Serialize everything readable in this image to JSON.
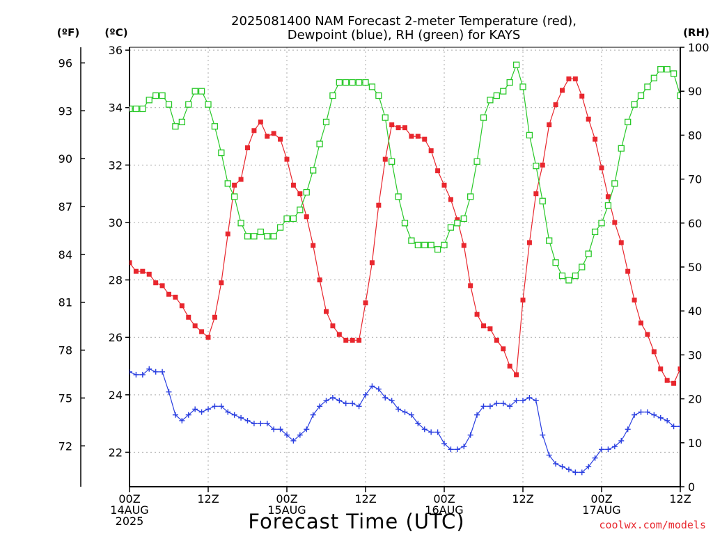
{
  "title_line1": "2025081400 NAM Forecast 2-meter Temperature (red),",
  "title_line2": "Dewpoint (blue), RH (green) for KAYS",
  "unit_f": "(ºF)",
  "unit_c": "(ºC)",
  "unit_rh": "(RH)",
  "xlabel": "Forecast Time (UTC)",
  "credit": "coolwx.com/models",
  "x_ticks": [
    {
      "hour": 0,
      "lines": [
        "00Z",
        "14AUG",
        "2025"
      ]
    },
    {
      "hour": 12,
      "lines": [
        "12Z"
      ]
    },
    {
      "hour": 24,
      "lines": [
        "00Z",
        "15AUG"
      ]
    },
    {
      "hour": 36,
      "lines": [
        "12Z"
      ]
    },
    {
      "hour": 48,
      "lines": [
        "00Z",
        "16AUG"
      ]
    },
    {
      "hour": 60,
      "lines": [
        "12Z"
      ]
    },
    {
      "hour": 72,
      "lines": [
        "00Z",
        "17AUG"
      ]
    },
    {
      "hour": 84,
      "lines": [
        "12Z"
      ]
    }
  ],
  "c_ticks": [
    "22",
    "24",
    "26",
    "28",
    "30",
    "32",
    "34",
    "36"
  ],
  "f_ticks": [
    "72",
    "75",
    "78",
    "81",
    "84",
    "87",
    "90",
    "93",
    "96"
  ],
  "rh_ticks": [
    "0",
    "10",
    "20",
    "30",
    "40",
    "50",
    "60",
    "70",
    "80",
    "90",
    "100"
  ],
  "chart_data": {
    "type": "line",
    "x_unit": "forecast hour from 2025081400",
    "xlim": [
      0,
      84
    ],
    "left_axis_c": {
      "ylim": [
        20.8,
        36.1
      ],
      "ticks": [
        22,
        24,
        26,
        28,
        30,
        32,
        34,
        36
      ]
    },
    "left_axis_f": {
      "ticks": [
        72,
        75,
        78,
        81,
        84,
        87,
        90,
        93,
        96
      ]
    },
    "right_axis_rh": {
      "ylim": [
        0,
        100
      ],
      "ticks": [
        0,
        10,
        20,
        30,
        40,
        50,
        60,
        70,
        80,
        90,
        100
      ]
    },
    "grid": true,
    "series": [
      {
        "name": "Temperature (red)",
        "axis": "C",
        "color": "#e8272e",
        "marker": "filled-square",
        "x": [
          0,
          1,
          2,
          3,
          4,
          5,
          6,
          7,
          8,
          9,
          10,
          11,
          12,
          13,
          14,
          15,
          16,
          17,
          18,
          19,
          20,
          21,
          22,
          23,
          24,
          25,
          26,
          27,
          28,
          29,
          30,
          31,
          32,
          33,
          34,
          35,
          36,
          37,
          38,
          39,
          40,
          41,
          42,
          43,
          44,
          45,
          46,
          47,
          48,
          49,
          50,
          51,
          52,
          53,
          54,
          55,
          56,
          57,
          58,
          59,
          60,
          61,
          62,
          63,
          64,
          65,
          66,
          67,
          68,
          69,
          70,
          71,
          72,
          73,
          74,
          75,
          76,
          77,
          78,
          79,
          80,
          81,
          82,
          83,
          84
        ],
        "values": [
          28.6,
          28.3,
          28.3,
          28.2,
          27.9,
          27.8,
          27.5,
          27.4,
          27.1,
          26.7,
          26.4,
          26.2,
          26.0,
          26.7,
          27.9,
          29.6,
          31.3,
          31.5,
          32.6,
          33.2,
          33.5,
          33.0,
          33.1,
          32.9,
          32.2,
          31.3,
          31.0,
          30.2,
          29.2,
          28.0,
          26.9,
          26.4,
          26.1,
          25.9,
          25.9,
          25.9,
          27.2,
          28.6,
          30.6,
          32.2,
          33.4,
          33.3,
          33.3,
          33.0,
          33.0,
          32.9,
          32.5,
          31.8,
          31.3,
          30.8,
          30.1,
          29.2,
          27.8,
          26.8,
          26.4,
          26.3,
          25.9,
          25.6,
          25.0,
          24.7,
          27.3,
          29.3,
          31.0,
          32.0,
          33.4,
          34.1,
          34.6,
          35.0,
          35.0,
          34.4,
          33.6,
          32.9,
          31.9,
          30.9,
          30.0,
          29.3,
          28.3,
          27.3,
          26.5,
          26.1,
          25.5,
          24.9,
          24.5,
          24.4,
          24.9
        ]
      },
      {
        "name": "Dewpoint (blue)",
        "axis": "C",
        "color": "#2a3fe0",
        "marker": "plus",
        "x": [
          0,
          1,
          2,
          3,
          4,
          5,
          6,
          7,
          8,
          9,
          10,
          11,
          12,
          13,
          14,
          15,
          16,
          17,
          18,
          19,
          20,
          21,
          22,
          23,
          24,
          25,
          26,
          27,
          28,
          29,
          30,
          31,
          32,
          33,
          34,
          35,
          36,
          37,
          38,
          39,
          40,
          41,
          42,
          43,
          44,
          45,
          46,
          47,
          48,
          49,
          50,
          51,
          52,
          53,
          54,
          55,
          56,
          57,
          58,
          59,
          60,
          61,
          62,
          63,
          64,
          65,
          66,
          67,
          68,
          69,
          70,
          71,
          72,
          73,
          74,
          75,
          76,
          77,
          78,
          79,
          80,
          81,
          82,
          83,
          84
        ],
        "values": [
          24.8,
          24.7,
          24.7,
          24.9,
          24.8,
          24.8,
          24.1,
          23.3,
          23.1,
          23.3,
          23.5,
          23.4,
          23.5,
          23.6,
          23.6,
          23.4,
          23.3,
          23.2,
          23.1,
          23.0,
          23.0,
          23.0,
          22.8,
          22.8,
          22.6,
          22.4,
          22.6,
          22.8,
          23.3,
          23.6,
          23.8,
          23.9,
          23.8,
          23.7,
          23.7,
          23.6,
          24.0,
          24.3,
          24.2,
          23.9,
          23.8,
          23.5,
          23.4,
          23.3,
          23.0,
          22.8,
          22.7,
          22.7,
          22.3,
          22.1,
          22.1,
          22.2,
          22.6,
          23.3,
          23.6,
          23.6,
          23.7,
          23.7,
          23.6,
          23.8,
          23.8,
          23.9,
          23.8,
          22.6,
          21.9,
          21.6,
          21.5,
          21.4,
          21.3,
          21.3,
          21.5,
          21.8,
          22.1,
          22.1,
          22.2,
          22.4,
          22.8,
          23.3,
          23.4,
          23.4,
          23.3,
          23.2,
          23.1,
          22.9,
          22.9
        ]
      },
      {
        "name": "RH (green)",
        "axis": "RH",
        "color": "#28c828",
        "marker": "open-square",
        "x": [
          0,
          1,
          2,
          3,
          4,
          5,
          6,
          7,
          8,
          9,
          10,
          11,
          12,
          13,
          14,
          15,
          16,
          17,
          18,
          19,
          20,
          21,
          22,
          23,
          24,
          25,
          26,
          27,
          28,
          29,
          30,
          31,
          32,
          33,
          34,
          35,
          36,
          37,
          38,
          39,
          40,
          41,
          42,
          43,
          44,
          45,
          46,
          47,
          48,
          49,
          50,
          51,
          52,
          53,
          54,
          55,
          56,
          57,
          58,
          59,
          60,
          61,
          62,
          63,
          64,
          65,
          66,
          67,
          68,
          69,
          70,
          71,
          72,
          73,
          74,
          75,
          76,
          77,
          78,
          79,
          80,
          81,
          82,
          83,
          84
        ],
        "values": [
          86,
          86,
          86,
          88,
          89,
          89,
          87,
          82,
          83,
          87,
          90,
          90,
          87,
          82,
          76,
          69,
          66,
          60,
          57,
          57,
          58,
          57,
          57,
          59,
          61,
          61,
          63,
          67,
          72,
          78,
          83,
          89,
          92,
          92,
          92,
          92,
          92,
          91,
          89,
          84,
          74,
          66,
          60,
          56,
          55,
          55,
          55,
          54,
          55,
          59,
          60,
          61,
          66,
          74,
          84,
          88,
          89,
          90,
          92,
          96,
          91,
          80,
          73,
          65,
          56,
          51,
          48,
          47,
          48,
          50,
          53,
          58,
          60,
          64,
          69,
          77,
          83,
          87,
          89,
          91,
          93,
          95,
          95,
          94,
          89
        ]
      }
    ]
  }
}
